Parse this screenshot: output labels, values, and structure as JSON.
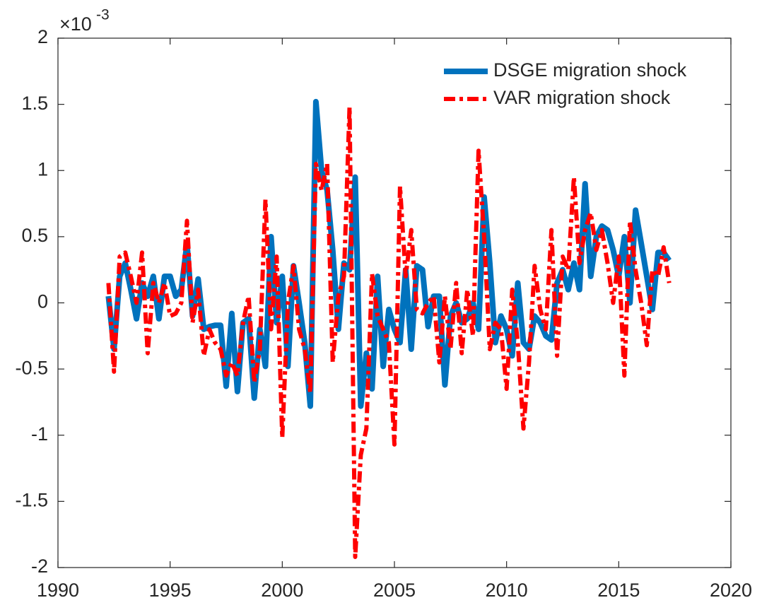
{
  "chart_data": {
    "type": "line",
    "y_multiplier": {
      "base": "×10",
      "exponent": "-3"
    },
    "x": [
      1992.25,
      1992.5,
      1992.75,
      1993,
      1993.25,
      1993.5,
      1993.75,
      1994,
      1994.25,
      1994.5,
      1994.75,
      1995,
      1995.25,
      1995.5,
      1995.75,
      1996,
      1996.25,
      1996.5,
      1996.75,
      1997,
      1997.25,
      1997.5,
      1997.75,
      1998,
      1998.25,
      1998.5,
      1998.75,
      1999,
      1999.25,
      1999.5,
      1999.75,
      2000,
      2000.25,
      2000.5,
      2000.75,
      2001,
      2001.25,
      2001.5,
      2001.75,
      2002,
      2002.25,
      2002.5,
      2002.75,
      2003,
      2003.25,
      2003.5,
      2003.75,
      2004,
      2004.25,
      2004.5,
      2004.75,
      2005,
      2005.25,
      2005.5,
      2005.75,
      2006,
      2006.25,
      2006.5,
      2006.75,
      2007,
      2007.25,
      2007.5,
      2007.75,
      2008,
      2008.25,
      2008.5,
      2008.75,
      2009,
      2009.25,
      2009.5,
      2009.75,
      2010,
      2010.25,
      2010.5,
      2010.75,
      2011,
      2011.25,
      2011.5,
      2011.75,
      2012,
      2012.25,
      2012.5,
      2012.75,
      2013,
      2013.25,
      2013.5,
      2013.75,
      2014,
      2014.25,
      2014.5,
      2014.75,
      2015,
      2015.25,
      2015.5,
      2015.75,
      2016,
      2016.25,
      2016.5,
      2016.75,
      2017,
      2017.25
    ],
    "series": [
      {
        "name": "DSGE migration shock",
        "color": "#0072bd",
        "style": "solid",
        "values": [
          0.05,
          -0.35,
          0.2,
          0.3,
          0.1,
          -0.12,
          0.15,
          0.05,
          0.2,
          -0.12,
          0.2,
          0.2,
          0.05,
          0.1,
          0.45,
          -0.1,
          0.18,
          -0.2,
          -0.18,
          -0.17,
          -0.17,
          -0.63,
          -0.08,
          -0.67,
          -0.15,
          -0.12,
          -0.72,
          -0.2,
          -0.48,
          0.5,
          -0.15,
          0.2,
          -0.48,
          0.28,
          0.0,
          -0.3,
          -0.78,
          1.52,
          1.0,
          0.85,
          0.4,
          -0.2,
          0.3,
          0.25,
          0.95,
          -0.78,
          -0.38,
          -0.65,
          0.2,
          -0.48,
          -0.05,
          -0.2,
          -0.3,
          0.25,
          -0.35,
          0.28,
          0.25,
          -0.18,
          0.05,
          0.05,
          -0.62,
          -0.1,
          0.0,
          -0.15,
          -0.12,
          0.0,
          -0.2,
          0.8,
          0.3,
          -0.3,
          -0.1,
          -0.2,
          -0.4,
          0.15,
          -0.3,
          -0.35,
          -0.1,
          -0.15,
          -0.25,
          -0.28,
          0.15,
          0.25,
          0.1,
          0.3,
          0.1,
          0.9,
          0.2,
          0.5,
          0.58,
          0.55,
          0.4,
          0.2,
          0.5,
          0.0,
          0.7,
          0.45,
          0.2,
          -0.05,
          0.38,
          0.38,
          0.32
        ]
      },
      {
        "name": "VAR migration shock",
        "color": "#ff0000",
        "style": "dashdot",
        "values": [
          0.15,
          -0.52,
          0.35,
          0.38,
          0.2,
          0.0,
          0.38,
          -0.38,
          0.15,
          0.0,
          0.15,
          -0.1,
          -0.08,
          0.0,
          0.62,
          -0.15,
          0.1,
          -0.4,
          -0.2,
          -0.3,
          -0.35,
          -0.55,
          -0.45,
          -0.55,
          -0.15,
          0.05,
          -0.6,
          -0.35,
          0.78,
          -0.2,
          0.35,
          -1.02,
          0.0,
          0.28,
          -0.2,
          -0.35,
          -0.68,
          1.05,
          0.85,
          1.05,
          -0.45,
          0.05,
          0.2,
          1.48,
          -1.92,
          -1.15,
          -0.95,
          0.22,
          -0.1,
          -0.2,
          -0.3,
          -1.07,
          0.88,
          0.2,
          0.55,
          -0.05,
          -0.08,
          0.0,
          0.05,
          -0.45,
          0.05,
          -0.35,
          0.15,
          -0.38,
          0.1,
          -0.25,
          1.15,
          0.5,
          -0.35,
          -0.15,
          -0.2,
          -0.65,
          0.1,
          -0.3,
          -0.95,
          -0.45,
          0.28,
          -0.05,
          -0.2,
          0.55,
          -0.4,
          0.35,
          0.25,
          0.95,
          0.3,
          0.55,
          0.68,
          0.4,
          0.55,
          0.3,
          0.0,
          0.35,
          -0.55,
          0.62,
          0.25,
          0.0,
          -0.32,
          0.25,
          0.2,
          0.42,
          0.15
        ]
      }
    ],
    "xlim": [
      1990,
      2020
    ],
    "xticks": [
      1990,
      1995,
      2000,
      2005,
      2010,
      2015,
      2020
    ],
    "ylim": [
      -2,
      2
    ],
    "yticks": [
      -2,
      -1.5,
      -1,
      -0.5,
      0,
      0.5,
      1,
      1.5,
      2
    ],
    "grid": false,
    "legend": "top-right"
  }
}
